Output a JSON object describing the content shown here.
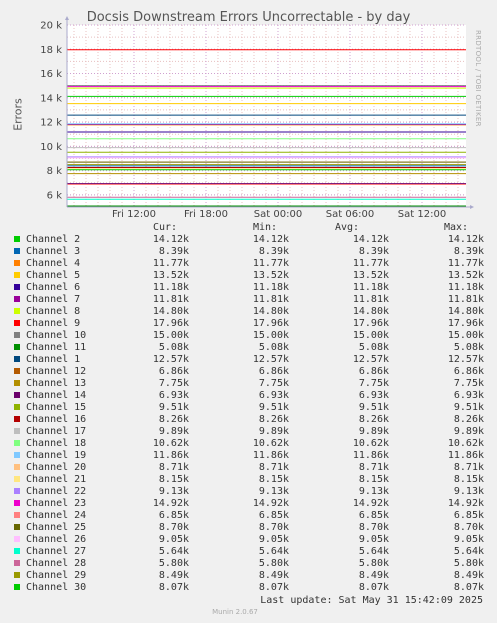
{
  "chart_data": {
    "type": "line",
    "title": "Docsis Downstream Errors Uncorrectable - by day",
    "ylabel": "Errors",
    "ylim": [
      5000,
      20000
    ],
    "y_ticks": [
      "6 k",
      "8 k",
      "10 k",
      "12 k",
      "14 k",
      "16 k",
      "18 k",
      "20 k"
    ],
    "y_tick_values": [
      6000,
      8000,
      10000,
      12000,
      14000,
      16000,
      18000,
      20000
    ],
    "x_ticks": [
      "Fri 12:00",
      "Fri 18:00",
      "Sat 00:00",
      "Sat 06:00",
      "Sat 12:00"
    ],
    "grid": true,
    "legend_headers": [
      "Cur:",
      "Min:",
      "Avg:",
      "Max:"
    ],
    "series": [
      {
        "name": "Channel 2",
        "color": "#00cc00",
        "value": 14120,
        "cur": "14.12k",
        "min": "14.12k",
        "avg": "14.12k",
        "max": "14.12k"
      },
      {
        "name": "Channel 3",
        "color": "#0066b3",
        "value": 8390,
        "cur": "8.39k",
        "min": "8.39k",
        "avg": "8.39k",
        "max": "8.39k"
      },
      {
        "name": "Channel 4",
        "color": "#ff8000",
        "value": 11770,
        "cur": "11.77k",
        "min": "11.77k",
        "avg": "11.77k",
        "max": "11.77k"
      },
      {
        "name": "Channel 5",
        "color": "#ffcc00",
        "value": 13520,
        "cur": "13.52k",
        "min": "13.52k",
        "avg": "13.52k",
        "max": "13.52k"
      },
      {
        "name": "Channel 6",
        "color": "#330099",
        "value": 11180,
        "cur": "11.18k",
        "min": "11.18k",
        "avg": "11.18k",
        "max": "11.18k"
      },
      {
        "name": "Channel 7",
        "color": "#990099",
        "value": 11810,
        "cur": "11.81k",
        "min": "11.81k",
        "avg": "11.81k",
        "max": "11.81k"
      },
      {
        "name": "Channel 8",
        "color": "#ccff00",
        "value": 14800,
        "cur": "14.80k",
        "min": "14.80k",
        "avg": "14.80k",
        "max": "14.80k"
      },
      {
        "name": "Channel 9",
        "color": "#ff0000",
        "value": 17960,
        "cur": "17.96k",
        "min": "17.96k",
        "avg": "17.96k",
        "max": "17.96k"
      },
      {
        "name": "Channel 10",
        "color": "#808080",
        "value": 15000,
        "cur": "15.00k",
        "min": "15.00k",
        "avg": "15.00k",
        "max": "15.00k"
      },
      {
        "name": "Channel 11",
        "color": "#008f00",
        "value": 5080,
        "cur": "5.08k",
        "min": "5.08k",
        "avg": "5.08k",
        "max": "5.08k"
      },
      {
        "name": "Channel 1",
        "color": "#00487d",
        "value": 12570,
        "cur": "12.57k",
        "min": "12.57k",
        "avg": "12.57k",
        "max": "12.57k"
      },
      {
        "name": "Channel 12",
        "color": "#b35a00",
        "value": 6860,
        "cur": "6.86k",
        "min": "6.86k",
        "avg": "6.86k",
        "max": "6.86k"
      },
      {
        "name": "Channel 13",
        "color": "#b38f00",
        "value": 7750,
        "cur": "7.75k",
        "min": "7.75k",
        "avg": "7.75k",
        "max": "7.75k"
      },
      {
        "name": "Channel 14",
        "color": "#6b006b",
        "value": 6930,
        "cur": "6.93k",
        "min": "6.93k",
        "avg": "6.93k",
        "max": "6.93k"
      },
      {
        "name": "Channel 15",
        "color": "#8fb300",
        "value": 9510,
        "cur": "9.51k",
        "min": "9.51k",
        "avg": "9.51k",
        "max": "9.51k"
      },
      {
        "name": "Channel 16",
        "color": "#b30000",
        "value": 8260,
        "cur": "8.26k",
        "min": "8.26k",
        "avg": "8.26k",
        "max": "8.26k"
      },
      {
        "name": "Channel 17",
        "color": "#bebebe",
        "value": 9890,
        "cur": "9.89k",
        "min": "9.89k",
        "avg": "9.89k",
        "max": "9.89k"
      },
      {
        "name": "Channel 18",
        "color": "#80ff80",
        "value": 10620,
        "cur": "10.62k",
        "min": "10.62k",
        "avg": "10.62k",
        "max": "10.62k"
      },
      {
        "name": "Channel 19",
        "color": "#80c9ff",
        "value": 11860,
        "cur": "11.86k",
        "min": "11.86k",
        "avg": "11.86k",
        "max": "11.86k"
      },
      {
        "name": "Channel 20",
        "color": "#ffc080",
        "value": 8710,
        "cur": "8.71k",
        "min": "8.71k",
        "avg": "8.71k",
        "max": "8.71k"
      },
      {
        "name": "Channel 21",
        "color": "#ffe680",
        "value": 8150,
        "cur": "8.15k",
        "min": "8.15k",
        "avg": "8.15k",
        "max": "8.15k"
      },
      {
        "name": "Channel 22",
        "color": "#aa80ff",
        "value": 9130,
        "cur": "9.13k",
        "min": "9.13k",
        "avg": "9.13k",
        "max": "9.13k"
      },
      {
        "name": "Channel 23",
        "color": "#ee00cc",
        "value": 14920,
        "cur": "14.92k",
        "min": "14.92k",
        "avg": "14.92k",
        "max": "14.92k"
      },
      {
        "name": "Channel 24",
        "color": "#ff8080",
        "value": 6850,
        "cur": "6.85k",
        "min": "6.85k",
        "avg": "6.85k",
        "max": "6.85k"
      },
      {
        "name": "Channel 25",
        "color": "#666600",
        "value": 8700,
        "cur": "8.70k",
        "min": "8.70k",
        "avg": "8.70k",
        "max": "8.70k"
      },
      {
        "name": "Channel 26",
        "color": "#ffbfff",
        "value": 9050,
        "cur": "9.05k",
        "min": "9.05k",
        "avg": "9.05k",
        "max": "9.05k"
      },
      {
        "name": "Channel 27",
        "color": "#00ffcc",
        "value": 5640,
        "cur": "5.64k",
        "min": "5.64k",
        "avg": "5.64k",
        "max": "5.64k"
      },
      {
        "name": "Channel 28",
        "color": "#cc6699",
        "value": 5800,
        "cur": "5.80k",
        "min": "5.80k",
        "avg": "5.80k",
        "max": "5.80k"
      },
      {
        "name": "Channel 29",
        "color": "#999900",
        "value": 8490,
        "cur": "8.49k",
        "min": "8.49k",
        "avg": "8.49k",
        "max": "8.49k"
      },
      {
        "name": "Channel 30",
        "color": "#00cc00",
        "value": 8070,
        "cur": "8.07k",
        "min": "8.07k",
        "avg": "8.07k",
        "max": "8.07k"
      }
    ]
  },
  "side_text": "RRDTOOL / TOBI OETIKER",
  "last_update": "Last update: Sat May 31 15:42:09 2025",
  "footer": "Munin 2.0.67"
}
